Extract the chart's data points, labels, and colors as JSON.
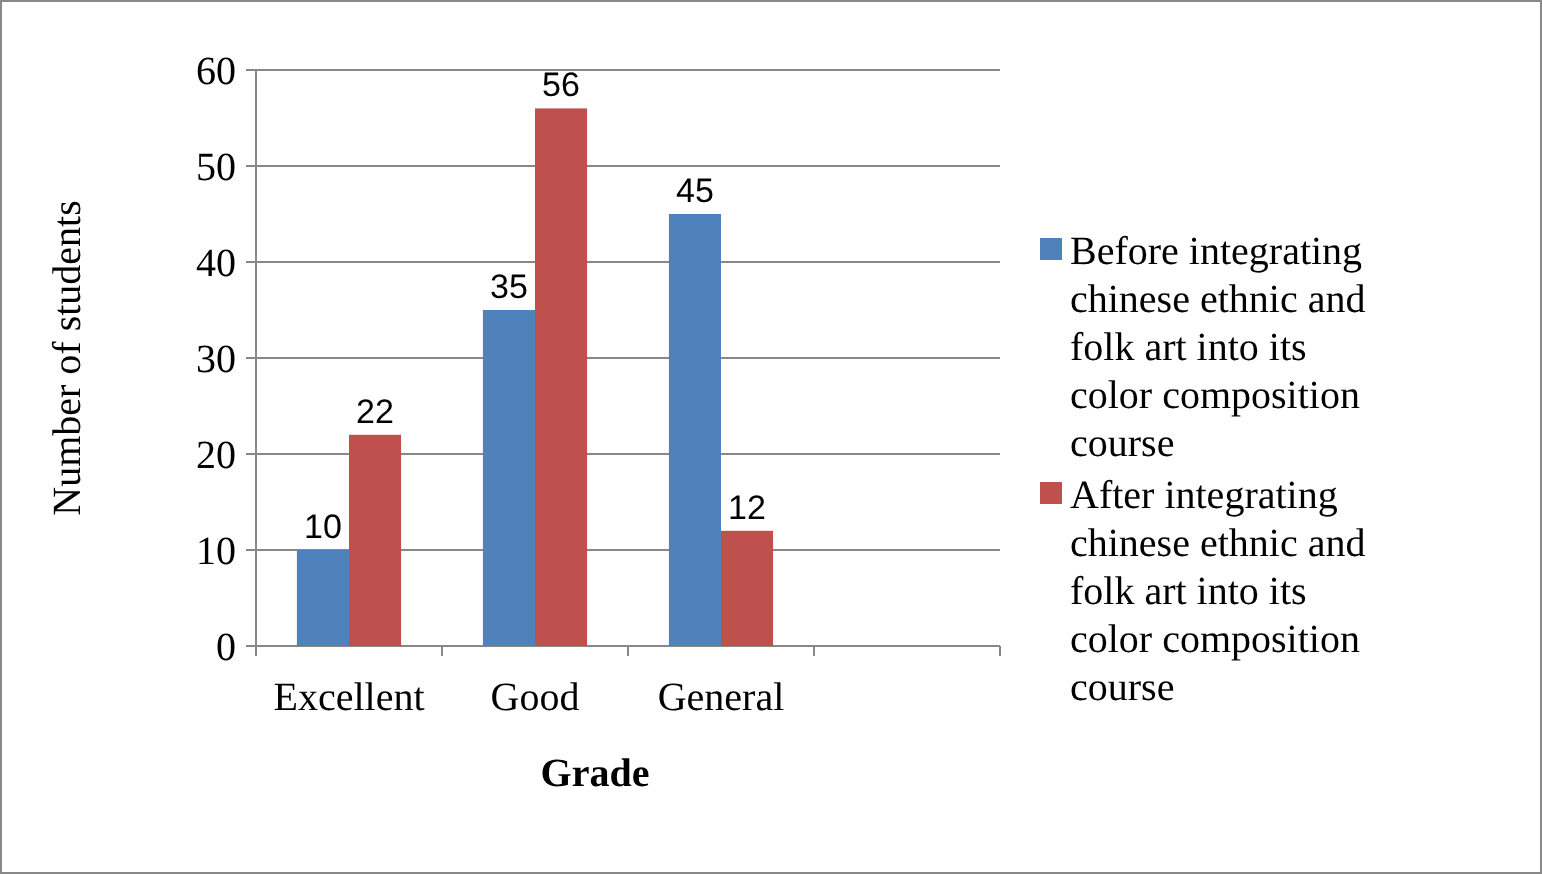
{
  "chart_data": {
    "type": "bar",
    "xlabel": "Grade",
    "ylabel": "Number of students",
    "categories": [
      "Excellent",
      "Good",
      "General",
      null
    ],
    "series": [
      {
        "name": "Before integrating chinese ethnic and folk art into its color composition course",
        "color": "#4f81bd",
        "values": [
          10,
          35,
          45,
          null
        ]
      },
      {
        "name": "After integrating chinese ethnic and folk art into its color composition course",
        "color": "#c0504d",
        "values": [
          22,
          56,
          12,
          null
        ]
      }
    ],
    "ylim": [
      0,
      60
    ],
    "yticks": [
      0,
      10,
      20,
      30,
      40,
      50,
      60
    ],
    "grid": "y",
    "legend": "right",
    "data_labels": true
  }
}
